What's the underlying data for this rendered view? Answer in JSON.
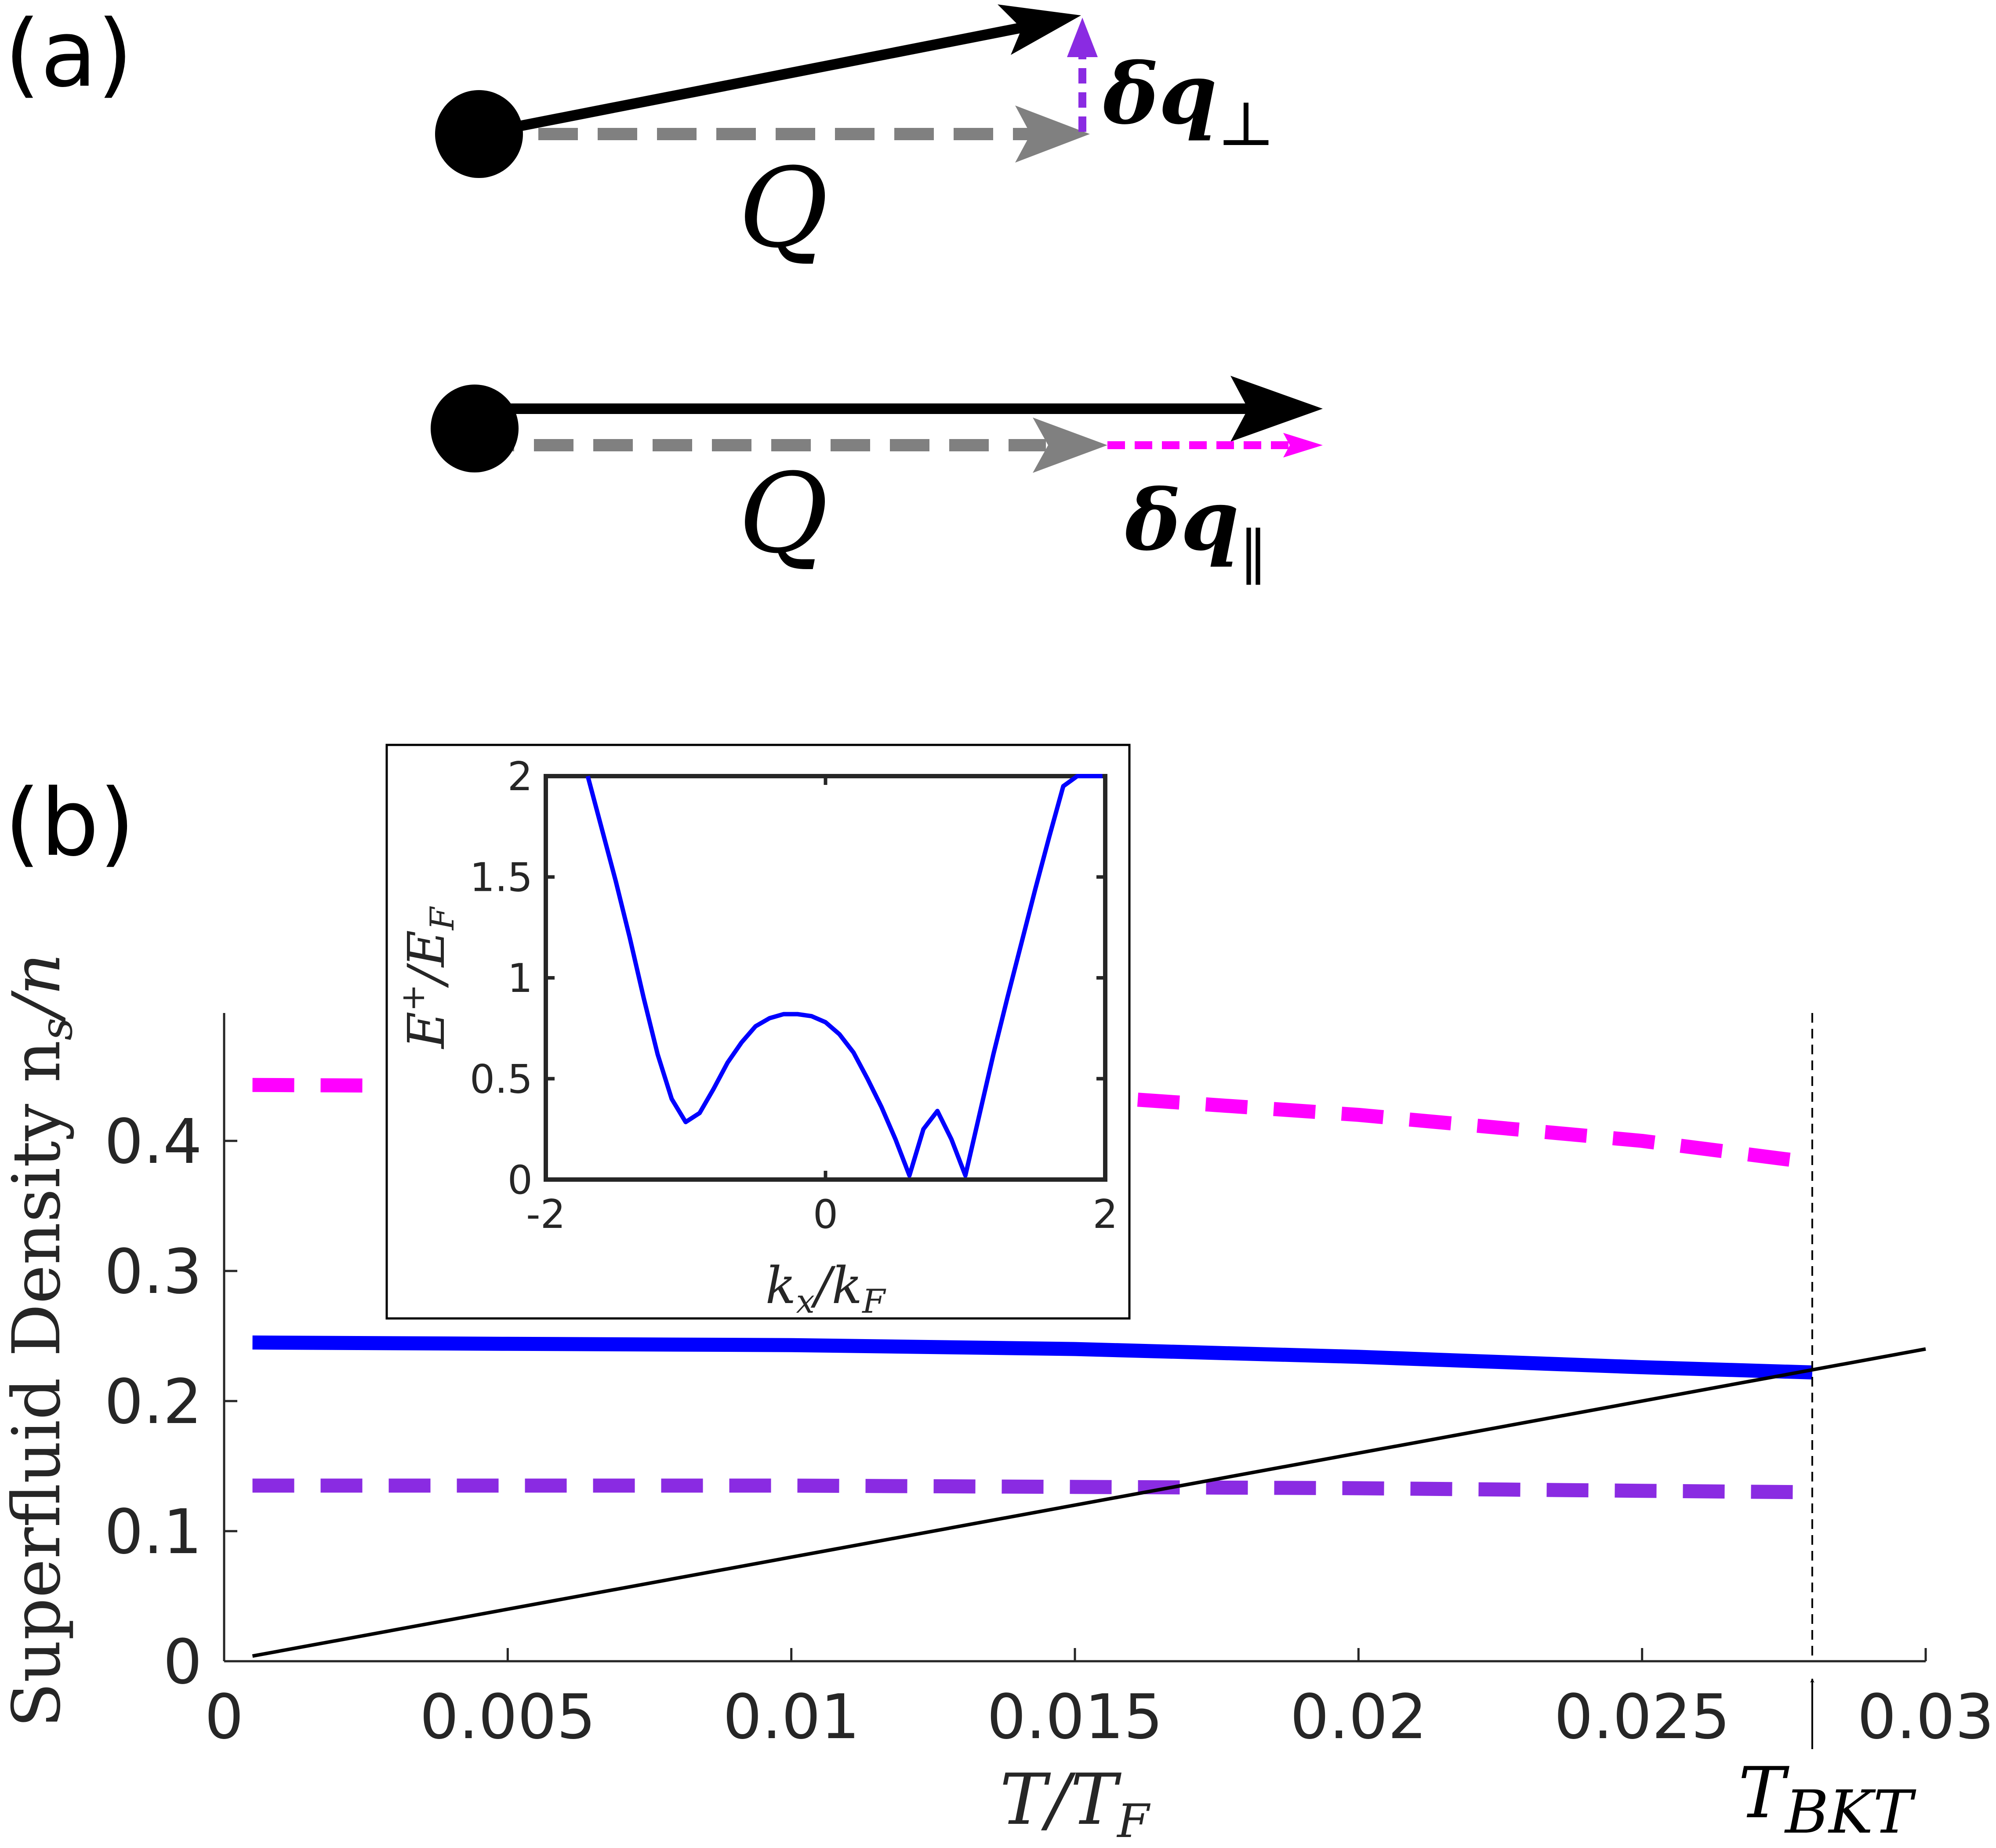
{
  "panel_a": {
    "label": "(a)",
    "top_vector": {
      "q_label": "Q",
      "delta_label": "δq",
      "delta_subscript": "⊥",
      "delta_color": "#8a2be2"
    },
    "bottom_vector": {
      "q_label": "Q",
      "delta_label": "δq",
      "delta_subscript": "‖",
      "delta_color": "#ff00ff"
    }
  },
  "panel_b": {
    "label": "(b)"
  },
  "chart_data": [
    {
      "type": "line",
      "xlabel": "T/T",
      "xlabel_sub": "F",
      "ylabel": "Superfluid Density n",
      "ylabel_sub": "s",
      "ylabel_tail": "/n",
      "xlim": [
        0,
        0.03
      ],
      "ylim": [
        0,
        0.5
      ],
      "grid": false,
      "xticks": [
        "0",
        "0.005",
        "0.01",
        "0.015",
        "0.02",
        "0.025",
        "0.03"
      ],
      "xtick_values": [
        0,
        0.005,
        0.01,
        0.015,
        0.02,
        0.025,
        0.03
      ],
      "yticks": [
        "0",
        "0.1",
        "0.2",
        "0.3",
        "0.4"
      ],
      "ytick_values": [
        0,
        0.1,
        0.2,
        0.3,
        0.4
      ],
      "annotation": {
        "text": "T",
        "sub": "BKT",
        "x": 0.028
      },
      "series": [
        {
          "style": "dashed",
          "color": "#ff00ff",
          "x": [
            0.0005,
            0.005,
            0.01,
            0.015,
            0.02,
            0.025,
            0.0277
          ],
          "y": [
            0.443,
            0.442,
            0.44,
            0.435,
            0.42,
            0.4,
            0.385
          ]
        },
        {
          "style": "solid-thick",
          "color": "#0000ff",
          "x": [
            0.0005,
            0.005,
            0.01,
            0.015,
            0.02,
            0.025,
            0.028
          ],
          "y": [
            0.245,
            0.244,
            0.243,
            0.24,
            0.234,
            0.226,
            0.222
          ]
        },
        {
          "style": "dashed",
          "color": "#8a2be2",
          "x": [
            0.0005,
            0.005,
            0.01,
            0.015,
            0.02,
            0.025,
            0.0277
          ],
          "y": [
            0.135,
            0.135,
            0.135,
            0.134,
            0.133,
            0.131,
            0.13
          ]
        },
        {
          "style": "solid",
          "color": "#000000",
          "x": [
            0.0005,
            0.03
          ],
          "y": [
            0.004,
            0.24
          ]
        }
      ]
    },
    {
      "type": "line",
      "inset": true,
      "xlabel": "k",
      "xlabel_sub": "x",
      "xlabel_tail": "/k",
      "xlabel_sub2": "F",
      "ylabel": "E",
      "ylabel_sup": "+",
      "ylabel_tail": "/E",
      "ylabel_sub": "F",
      "xlim": [
        -2,
        2
      ],
      "ylim": [
        0,
        2
      ],
      "xticks": [
        "-2",
        "0",
        "2"
      ],
      "xtick_values": [
        -2,
        0,
        2
      ],
      "yticks": [
        "0",
        "0.5",
        "1",
        "1.5",
        "2"
      ],
      "ytick_values": [
        0,
        0.5,
        1,
        1.5,
        2
      ],
      "series": [
        {
          "color": "#0000ff",
          "x": [
            -1.7,
            -1.6,
            -1.5,
            -1.4,
            -1.3,
            -1.2,
            -1.1,
            -1.0,
            -0.9,
            -0.8,
            -0.7,
            -0.6,
            -0.5,
            -0.4,
            -0.3,
            -0.2,
            -0.1,
            0.0,
            0.1,
            0.2,
            0.3,
            0.4,
            0.5,
            0.6,
            0.7,
            0.8,
            0.9,
            1.0,
            1.1,
            1.2,
            1.3,
            1.4,
            1.5,
            1.6,
            1.7,
            1.8,
            1.9,
            1.98
          ],
          "y": [
            2.0,
            1.74,
            1.48,
            1.2,
            0.9,
            0.62,
            0.4,
            0.285,
            0.33,
            0.45,
            0.58,
            0.68,
            0.76,
            0.8,
            0.82,
            0.82,
            0.81,
            0.78,
            0.72,
            0.63,
            0.5,
            0.36,
            0.2,
            0.02,
            0.25,
            0.34,
            0.2,
            0.02,
            0.32,
            0.62,
            0.9,
            1.17,
            1.44,
            1.7,
            1.95,
            2.0,
            2.0,
            2.0
          ]
        }
      ]
    }
  ]
}
